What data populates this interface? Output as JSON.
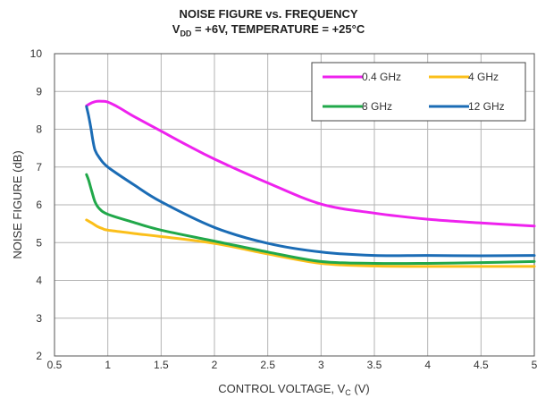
{
  "chart_data": {
    "type": "line",
    "title": "NOISE FIGURE vs. FREQUENCY",
    "subtitle": {
      "prefix": "V",
      "sub": "DD",
      "suffix": " = +6V, TEMPERATURE = +25°C"
    },
    "xlabel": {
      "prefix": "CONTROL VOLTAGE, V",
      "sub": "C",
      "suffix": " (V)"
    },
    "ylabel": "NOISE FIGURE (dB)",
    "xlim": [
      0.5,
      5
    ],
    "ylim": [
      2,
      10
    ],
    "xticks": [
      "0.5",
      "1",
      "1.5",
      "2",
      "2.5",
      "3",
      "3.5",
      "4",
      "4.5",
      "5"
    ],
    "yticks": [
      "2",
      "3",
      "4",
      "5",
      "6",
      "7",
      "8",
      "9",
      "10"
    ],
    "grid": true,
    "legend_position": "top-right",
    "series": [
      {
        "name": "0.4 GHz",
        "color": "#ee22ee",
        "x": [
          0.8,
          0.85,
          0.9,
          0.95,
          1.0,
          1.1,
          1.25,
          1.5,
          1.75,
          2.0,
          2.5,
          3.0,
          3.5,
          4.0,
          4.5,
          5.0
        ],
        "y": [
          8.62,
          8.7,
          8.74,
          8.74,
          8.72,
          8.58,
          8.33,
          7.95,
          7.57,
          7.21,
          6.58,
          6.02,
          5.78,
          5.62,
          5.52,
          5.44
        ]
      },
      {
        "name": "4 GHz",
        "color": "#fbbf1a",
        "x": [
          0.8,
          0.85,
          0.9,
          0.95,
          1.0,
          1.25,
          1.5,
          2.0,
          2.5,
          3.0,
          3.5,
          4.0,
          4.5,
          5.0
        ],
        "y": [
          5.6,
          5.52,
          5.43,
          5.37,
          5.33,
          5.24,
          5.16,
          4.98,
          4.7,
          4.45,
          4.38,
          4.37,
          4.37,
          4.37
        ]
      },
      {
        "name": "8 GHz",
        "color": "#21a84a",
        "x": [
          0.8,
          0.82,
          0.85,
          0.88,
          0.92,
          1.0,
          1.25,
          1.5,
          2.0,
          2.5,
          3.0,
          3.5,
          4.0,
          4.5,
          5.0
        ],
        "y": [
          6.8,
          6.65,
          6.35,
          6.08,
          5.9,
          5.75,
          5.53,
          5.33,
          5.04,
          4.75,
          4.5,
          4.45,
          4.45,
          4.47,
          4.5
        ]
      },
      {
        "name": "12 GHz",
        "color": "#1b6cb5",
        "x": [
          0.8,
          0.82,
          0.84,
          0.86,
          0.88,
          0.92,
          1.0,
          1.25,
          1.5,
          2.0,
          2.5,
          3.0,
          3.5,
          4.0,
          4.5,
          5.0
        ],
        "y": [
          8.6,
          8.35,
          8.05,
          7.7,
          7.45,
          7.25,
          7.0,
          6.52,
          6.08,
          5.4,
          4.98,
          4.75,
          4.66,
          4.66,
          4.65,
          4.66
        ]
      }
    ]
  }
}
